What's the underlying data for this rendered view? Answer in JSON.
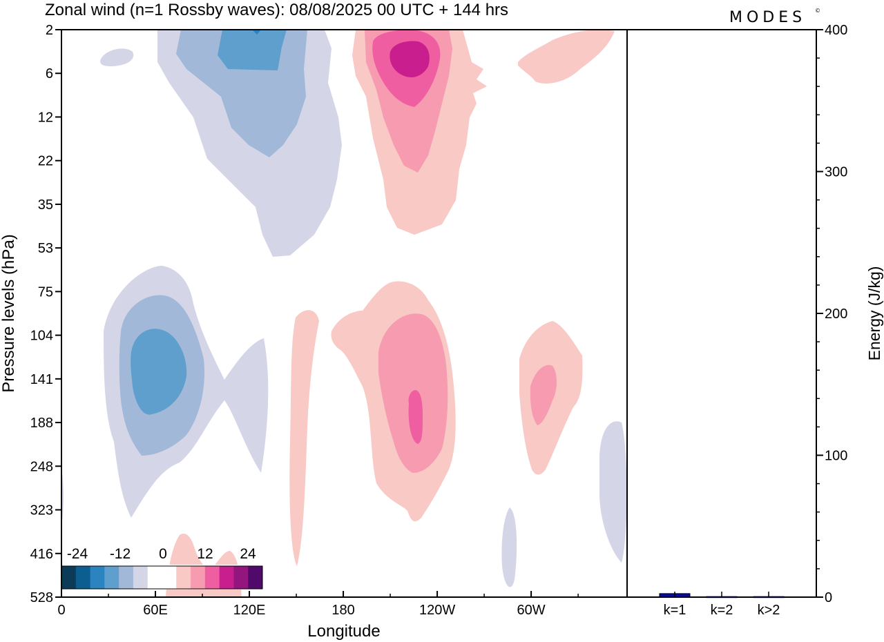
{
  "chart_data": {
    "type": "contour",
    "title": "Zonal wind (n=1 Rossby waves):  08/08/2025  00 UTC  + 144 hrs",
    "logo": "MODES",
    "logo_mark": "©",
    "xlabel": "Longitude",
    "ylabel": "Pressure levels (hPa)",
    "y2label": "Energy (J/kg)",
    "x_ticks": [
      "0",
      "60E",
      "120E",
      "180",
      "120W",
      "60W"
    ],
    "x_tick_degrees": [
      0,
      60,
      120,
      180,
      240,
      300
    ],
    "x_range_degrees": [
      0,
      360
    ],
    "y_levels": [
      "2",
      "6",
      "12",
      "22",
      "35",
      "53",
      "75",
      "104",
      "141",
      "188",
      "248",
      "323",
      "416",
      "528"
    ],
    "y2_ticks": [
      "0",
      "100",
      "200",
      "300",
      "400"
    ],
    "y2_range": [
      0,
      400
    ],
    "colorbar": {
      "labels": [
        "-24",
        "-12",
        "0",
        "12",
        "24"
      ],
      "colors": [
        "#0b3b57",
        "#0b5e8f",
        "#2b84bf",
        "#5f9fcd",
        "#a1b8d8",
        "#d4d6e8",
        "#ffffff",
        "#ffffff",
        "#f9c9c5",
        "#f79bb1",
        "#ee5ea1",
        "#c91f8e",
        "#93157e",
        "#4f0a6a"
      ]
    },
    "contours": [
      {
        "value": -4,
        "color": "#d4d6e8",
        "region": "upper 60E-160E, 2-53 hPa"
      },
      {
        "value": -8,
        "color": "#a1b8d8",
        "region": "upper 70E-130E, 2-22 hPa"
      },
      {
        "value": -12,
        "color": "#5f9fcd",
        "region": "upper 90E-120E, 2-6 hPa"
      },
      {
        "value": -4,
        "color": "#d4d6e8",
        "region": "lower 20E-130E, 75-323 hPa"
      },
      {
        "value": -8,
        "color": "#a1b8d8",
        "region": "lower 40E-85E, 104-248 hPa"
      },
      {
        "value": -12,
        "color": "#5f9fcd",
        "region": "lower 50E-80E, 104-188 hPa"
      },
      {
        "value": 4,
        "color": "#f9c9c5",
        "region": "upper 190-240, 2-35 hPa"
      },
      {
        "value": 8,
        "color": "#f79bb1",
        "region": "upper 200-235, 2-22 hPa"
      },
      {
        "value": 12,
        "color": "#ee5ea1",
        "region": "upper 210-232, 2-12 hPa"
      },
      {
        "value": 16,
        "color": "#c91f8e",
        "region": "upper 215-230, 2-6 hPa"
      },
      {
        "value": 4,
        "color": "#f9c9c5",
        "region": "lower 170-260, 75-323 hPa"
      },
      {
        "value": 8,
        "color": "#f79bb1",
        "region": "lower 200-240, 104-248 hPa"
      },
      {
        "value": 12,
        "color": "#ee5ea1",
        "region": "lower 220-230, 141 hPa"
      },
      {
        "value": -4,
        "color": "#d4d6e8",
        "region": "270-280 lon, 323-528 hPa; 340-360 lon, 188-416 hPa"
      },
      {
        "value": 4,
        "color": "#f9c9c5",
        "region": "290-320 lon, 104-248 hPa"
      }
    ],
    "energy_bars": {
      "categories": [
        "k=1",
        "k=2",
        "k>2"
      ],
      "values": [
        2.5,
        0.4,
        0.4
      ],
      "colors": [
        "#0a0a9e",
        "#0a0a9e",
        "#0a0a9e"
      ]
    }
  }
}
